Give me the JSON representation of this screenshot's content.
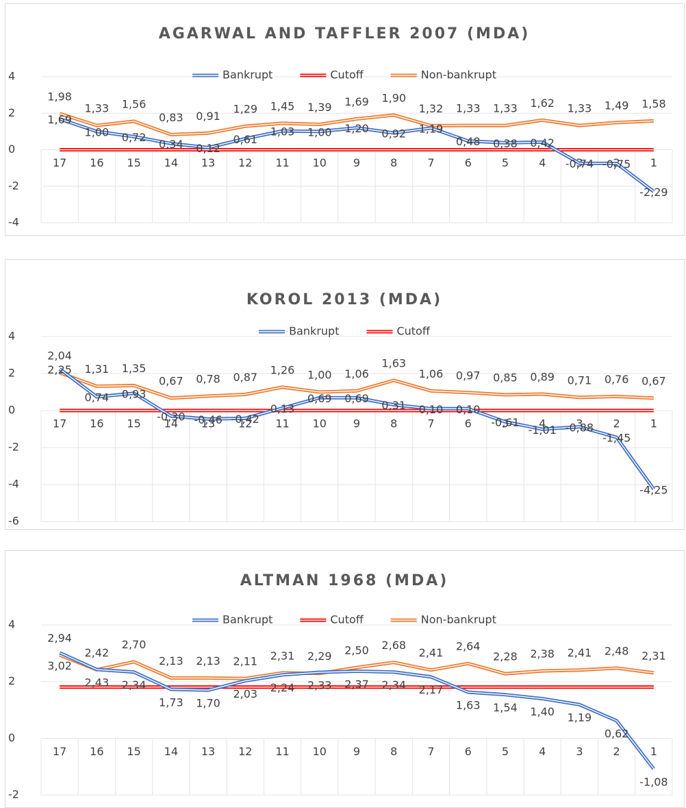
{
  "chart_data": [
    {
      "type": "line",
      "title": "AGARWAL AND TAFFLER 2007 (MDA)",
      "categories": [
        "17",
        "16",
        "15",
        "14",
        "13",
        "12",
        "11",
        "10",
        "9",
        "8",
        "7",
        "6",
        "5",
        "4",
        "3",
        "2",
        "1"
      ],
      "ylim": [
        -4,
        4
      ],
      "yticks": [
        -4,
        -2,
        0,
        2,
        4
      ],
      "grid": true,
      "series": [
        {
          "name": "Bankrupt",
          "color": "#4472c4",
          "values": [
            1.69,
            1.0,
            0.72,
            0.34,
            0.12,
            0.61,
            1.03,
            1.0,
            1.2,
            0.92,
            1.19,
            0.48,
            0.38,
            0.42,
            -0.74,
            -0.75,
            -2.29
          ],
          "value_labels": [
            "1,69",
            "1,00",
            "0,72",
            "0,34",
            "0,12",
            "0,61",
            "1,03",
            "1,00",
            "1,20",
            "0,92",
            "1,19",
            "0,48",
            "0,38",
            "0,42",
            "-0,74",
            "-0,75",
            "-2,29"
          ]
        },
        {
          "name": "Cutoff",
          "color": "#ff0000",
          "values": [
            0,
            0,
            0,
            0,
            0,
            0,
            0,
            0,
            0,
            0,
            0,
            0,
            0,
            0,
            0,
            0,
            0
          ]
        },
        {
          "name": "Non-bankrupt",
          "color": "#ed7d31",
          "values": [
            1.98,
            1.33,
            1.56,
            0.83,
            0.91,
            1.29,
            1.45,
            1.39,
            1.69,
            1.9,
            1.32,
            1.33,
            1.33,
            1.62,
            1.33,
            1.49,
            1.58
          ],
          "value_labels": [
            "1,98",
            "1,33",
            "1,56",
            "0,83",
            "0,91",
            "1,29",
            "1,45",
            "1,39",
            "1,69",
            "1,90",
            "1,32",
            "1,33",
            "1,33",
            "1,62",
            "1,33",
            "1,49",
            "1,58"
          ]
        }
      ]
    },
    {
      "type": "line",
      "title": "KOROL 2013 (MDA)",
      "categories": [
        "17",
        "16",
        "15",
        "14",
        "13",
        "12",
        "11",
        "10",
        "9",
        "8",
        "7",
        "6",
        "5",
        "4",
        "3",
        "2",
        "1"
      ],
      "ylim": [
        -6,
        4
      ],
      "yticks": [
        -6,
        -4,
        -2,
        0,
        2,
        4
      ],
      "grid": true,
      "series": [
        {
          "name": "Bankrupt",
          "color": "#4472c4",
          "values": [
            2.25,
            0.74,
            0.93,
            -0.3,
            -0.46,
            -0.42,
            0.13,
            0.69,
            0.69,
            0.31,
            0.1,
            0.1,
            -0.61,
            -1.01,
            -0.88,
            -1.45,
            -4.25
          ],
          "value_labels": [
            "2,25",
            "0,74",
            "0,93",
            "-0,30",
            "-0,46",
            "-0,42",
            "0,13",
            "0,69",
            "0,69",
            "0,31",
            "0,10",
            "0,10",
            "-0,61",
            "-1,01",
            "-0,88",
            "-1,45",
            "-4,25"
          ]
        },
        {
          "name": "Cutoff",
          "color": "#ff0000",
          "values": [
            0,
            0,
            0,
            0,
            0,
            0,
            0,
            0,
            0,
            0,
            0,
            0,
            0,
            0,
            0,
            0,
            0
          ]
        },
        {
          "color": "#ed7d31",
          "values": [
            2.04,
            1.31,
            1.35,
            0.67,
            0.78,
            0.87,
            1.26,
            1.0,
            1.06,
            1.63,
            1.06,
            0.97,
            0.85,
            0.89,
            0.71,
            0.76,
            0.67
          ],
          "value_labels": [
            "2,04",
            "1,31",
            "1,35",
            "0,67",
            "0,78",
            "0,87",
            "1,26",
            "1,00",
            "1,06",
            "1,63",
            "1,06",
            "0,97",
            "0,85",
            "0,89",
            "0,71",
            "0,76",
            "0,67"
          ]
        }
      ]
    },
    {
      "type": "line",
      "title": "ALTMAN 1968 (MDA)",
      "categories": [
        "17",
        "16",
        "15",
        "14",
        "13",
        "12",
        "11",
        "10",
        "9",
        "8",
        "7",
        "6",
        "5",
        "4",
        "3",
        "2",
        "1"
      ],
      "ylim": [
        -2,
        4
      ],
      "yticks": [
        -2,
        0,
        2,
        4
      ],
      "grid": true,
      "series": [
        {
          "name": "Bankrupt",
          "color": "#4472c4",
          "values": [
            3.02,
            2.43,
            2.34,
            1.73,
            1.7,
            2.03,
            2.24,
            2.33,
            2.37,
            2.34,
            2.17,
            1.63,
            1.54,
            1.4,
            1.19,
            0.62,
            -1.08
          ],
          "value_labels": [
            "3,02",
            "2,43",
            "2,34",
            "1,73",
            "1,70",
            "2,03",
            "2,24",
            "2,33",
            "2,37",
            "2,34",
            "2,17",
            "1,63",
            "1,54",
            "1,40",
            "1,19",
            "0,62",
            "-1,08"
          ]
        },
        {
          "name": "Cutoff",
          "color": "#ff0000",
          "values": [
            1.81,
            1.81,
            1.81,
            1.81,
            1.81,
            1.81,
            1.81,
            1.81,
            1.81,
            1.81,
            1.81,
            1.81,
            1.81,
            1.81,
            1.81,
            1.81,
            1.81
          ]
        },
        {
          "name": "Non-bankrupt",
          "color": "#ed7d31",
          "values": [
            2.94,
            2.42,
            2.7,
            2.13,
            2.13,
            2.11,
            2.31,
            2.29,
            2.5,
            2.68,
            2.41,
            2.64,
            2.28,
            2.38,
            2.41,
            2.48,
            2.31
          ],
          "value_labels": [
            "2,94",
            "2,42",
            "2,70",
            "2,13",
            "2,13",
            "2,11",
            "2,31",
            "2,29",
            "2,50",
            "2,68",
            "2,41",
            "2,64",
            "2,28",
            "2,38",
            "2,41",
            "2,48",
            "2,31"
          ]
        }
      ]
    }
  ]
}
